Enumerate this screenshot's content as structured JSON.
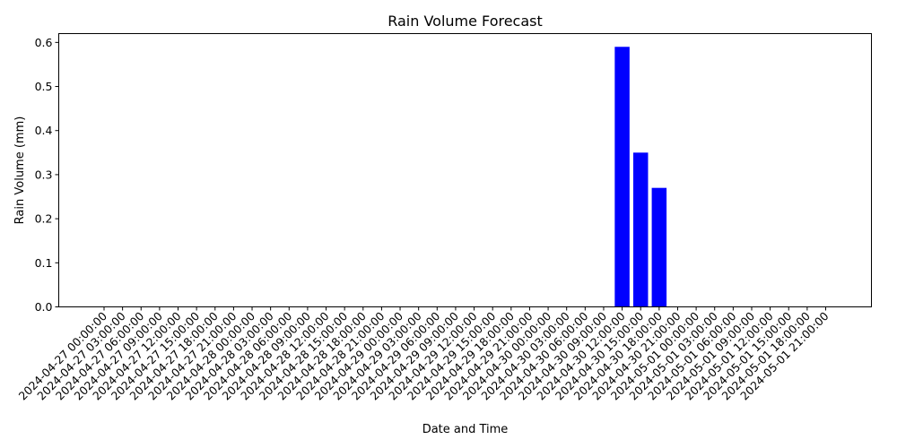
{
  "chart_data": {
    "type": "bar",
    "title": "Rain Volume Forecast",
    "xlabel": "Date and Time",
    "ylabel": "Rain Volume (mm)",
    "ylim": [
      0,
      0.62
    ],
    "yticks": [
      "0.0",
      "0.1",
      "0.2",
      "0.3",
      "0.4",
      "0.5",
      "0.6"
    ],
    "bar_color": "#0000ff",
    "grid": false,
    "categories": [
      "2024-04-27 00:00:00",
      "2024-04-27 03:00:00",
      "2024-04-27 06:00:00",
      "2024-04-27 09:00:00",
      "2024-04-27 12:00:00",
      "2024-04-27 15:00:00",
      "2024-04-27 18:00:00",
      "2024-04-27 21:00:00",
      "2024-04-28 00:00:00",
      "2024-04-28 03:00:00",
      "2024-04-28 06:00:00",
      "2024-04-28 09:00:00",
      "2024-04-28 12:00:00",
      "2024-04-28 15:00:00",
      "2024-04-28 18:00:00",
      "2024-04-28 21:00:00",
      "2024-04-29 00:00:00",
      "2024-04-29 03:00:00",
      "2024-04-29 06:00:00",
      "2024-04-29 09:00:00",
      "2024-04-29 12:00:00",
      "2024-04-29 15:00:00",
      "2024-04-29 18:00:00",
      "2024-04-29 21:00:00",
      "2024-04-30 00:00:00",
      "2024-04-30 03:00:00",
      "2024-04-30 06:00:00",
      "2024-04-30 09:00:00",
      "2024-04-30 12:00:00",
      "2024-04-30 15:00:00",
      "2024-04-30 18:00:00",
      "2024-04-30 21:00:00",
      "2024-05-01 00:00:00",
      "2024-05-01 03:00:00",
      "2024-05-01 06:00:00",
      "2024-05-01 09:00:00",
      "2024-05-01 12:00:00",
      "2024-05-01 15:00:00",
      "2024-05-01 18:00:00",
      "2024-05-01 21:00:00"
    ],
    "values": [
      0,
      0,
      0,
      0,
      0,
      0,
      0,
      0,
      0,
      0,
      0,
      0,
      0,
      0,
      0,
      0,
      0,
      0,
      0,
      0,
      0,
      0,
      0,
      0,
      0,
      0,
      0,
      0,
      0.59,
      0.35,
      0.27,
      0,
      0,
      0,
      0,
      0,
      0,
      0,
      0,
      0
    ]
  }
}
